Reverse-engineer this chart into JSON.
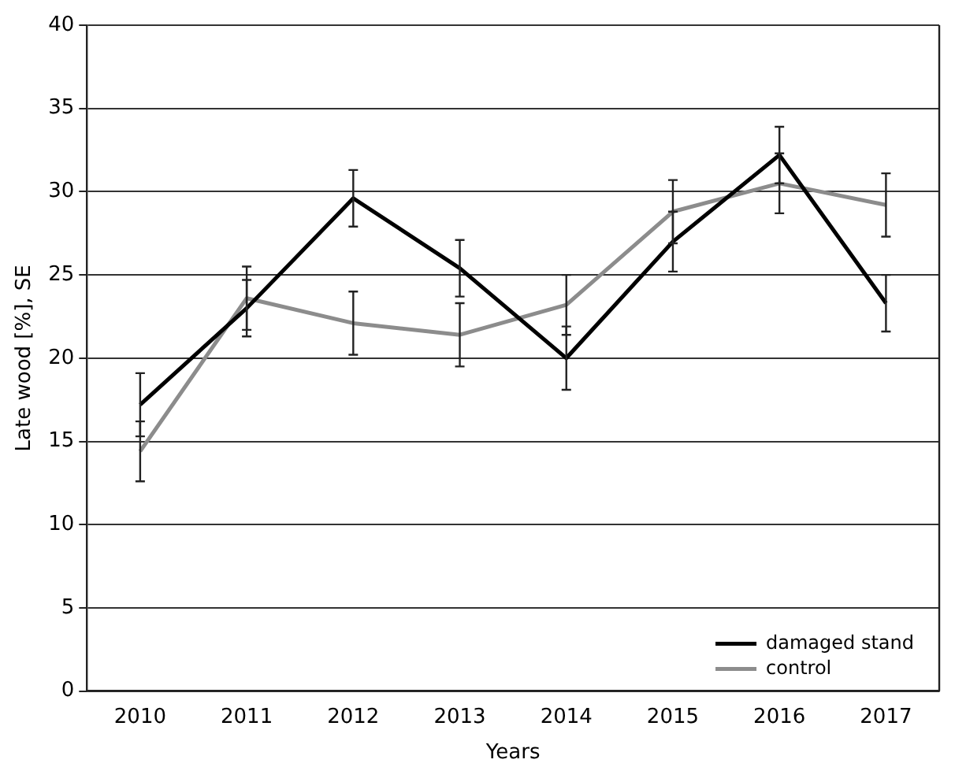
{
  "chart_data": {
    "type": "line",
    "xlabel": "Years",
    "ylabel": "Late wood [%], SE",
    "categories": [
      "2010",
      "2011",
      "2012",
      "2013",
      "2014",
      "2015",
      "2016",
      "2017"
    ],
    "series": [
      {
        "name": "damaged stand",
        "color": "#000000",
        "values": [
          17.2,
          23.0,
          29.6,
          25.4,
          20.0,
          27.0,
          32.2,
          23.3
        ],
        "errors": [
          1.9,
          1.7,
          1.7,
          1.7,
          1.9,
          1.8,
          1.7,
          1.7
        ]
      },
      {
        "name": "control",
        "color": "#8c8c8c",
        "values": [
          14.4,
          23.6,
          22.1,
          21.4,
          23.2,
          28.8,
          30.5,
          29.2
        ],
        "errors": [
          1.8,
          1.9,
          1.9,
          1.9,
          1.8,
          1.9,
          1.8,
          1.9
        ]
      }
    ],
    "ylim": [
      0,
      40
    ],
    "yticks": [
      0,
      5,
      10,
      15,
      20,
      25,
      30,
      35,
      40
    ],
    "grid": "y",
    "legend": "bottom right",
    "marker": "none",
    "line_style": "solid"
  }
}
